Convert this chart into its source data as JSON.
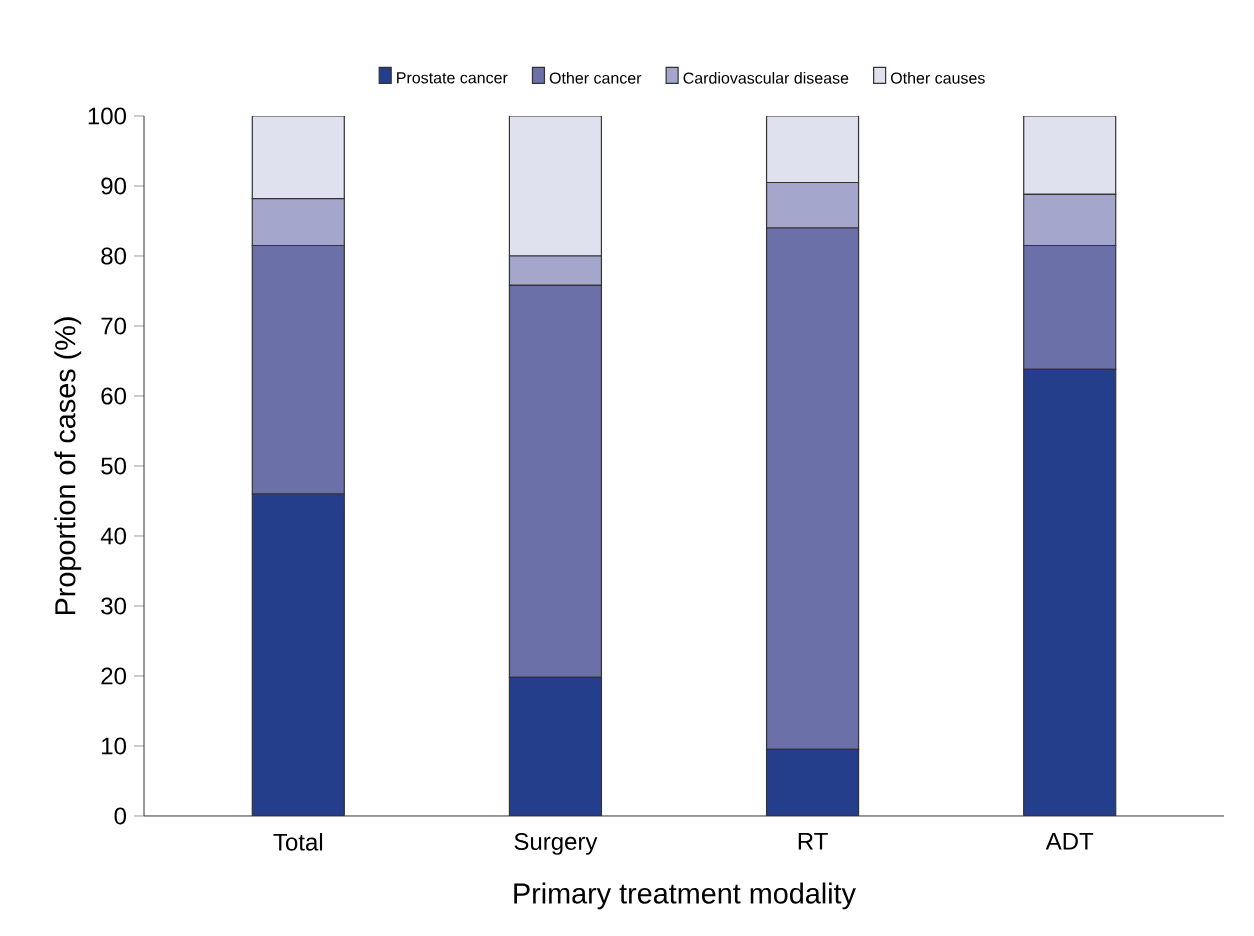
{
  "chart_data": {
    "type": "bar",
    "stacked": true,
    "xlabel": "Primary treatment modality",
    "ylabel": "Proportion of cases (%)",
    "categories": [
      "Total",
      "Surgery",
      "RT",
      "ADT"
    ],
    "series": [
      {
        "name": "Prostate cancer",
        "color": "#253e8c",
        "values": [
          46,
          19.8,
          9.5,
          63.8
        ]
      },
      {
        "name": "Other cancer",
        "color": "#6b70a8",
        "values": [
          35.5,
          56,
          74.5,
          17.7
        ]
      },
      {
        "name": "Cardiovascular disease",
        "color": "#a4a6cc",
        "values": [
          6.7,
          4.2,
          6.5,
          7.3
        ]
      },
      {
        "name": "Other causes",
        "color": "#dfe1ee",
        "values": [
          11.8,
          20,
          9.5,
          11.2
        ]
      }
    ],
    "ylim": [
      0,
      100
    ],
    "yticks": [
      0,
      10,
      20,
      30,
      40,
      50,
      60,
      70,
      80,
      90,
      100
    ],
    "grid": false,
    "legend": "top"
  }
}
